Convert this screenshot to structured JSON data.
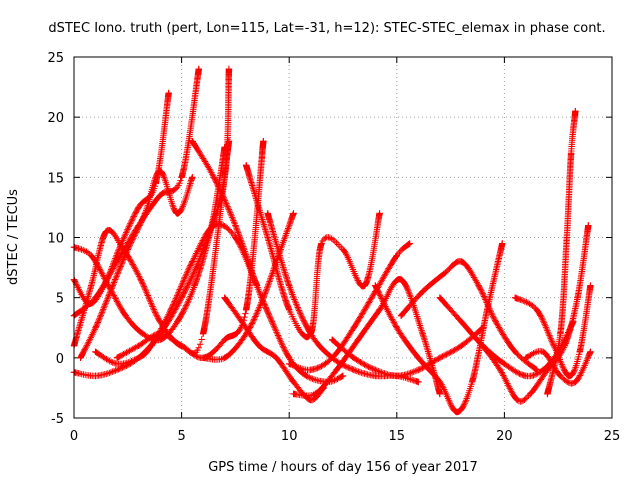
{
  "chart_data": {
    "type": "scatter",
    "title": "dSTEC Iono. truth (pert, Lon=115, Lat=-31, h=12): STEC-STEC_elemax in phase cont.",
    "xlabel": "GPS time / hours of day 156 of year 2017",
    "ylabel": "dSTEC  / TECUs",
    "xlim": [
      0,
      25
    ],
    "ylim": [
      -5,
      25
    ],
    "xticks": [
      "0",
      "5",
      "10",
      "15",
      "20",
      "25"
    ],
    "yticks": [
      "-5",
      "0",
      "5",
      "10",
      "15",
      "20",
      "25"
    ],
    "grid": true,
    "marker": "+",
    "color": "#ff0000",
    "series": [
      {
        "x": [
          0.0,
          0.8,
          1.6,
          2.4,
          3.2,
          4.0,
          4.8,
          5.6,
          6.4,
          7.0
        ],
        "y": [
          9.2,
          8.5,
          6.0,
          3.5,
          2.0,
          1.5,
          3.0,
          6.0,
          11.0,
          17.5
        ]
      },
      {
        "x": [
          0.0,
          0.7,
          1.4,
          2.2,
          3.0,
          3.8,
          4.4
        ],
        "y": [
          6.5,
          4.5,
          6.0,
          9.5,
          12.5,
          14.5,
          22.0
        ]
      },
      {
        "x": [
          0.0,
          1.0,
          2.0,
          3.0,
          4.0,
          5.0,
          5.8
        ],
        "y": [
          3.5,
          5.0,
          8.0,
          11.0,
          13.5,
          15.0,
          24.0
        ]
      },
      {
        "x": [
          0.0,
          1.0,
          2.0,
          3.0,
          4.0,
          5.0,
          6.0,
          7.0,
          7.2
        ],
        "y": [
          -1.2,
          -1.5,
          -1.0,
          0.0,
          2.0,
          5.0,
          9.0,
          15.0,
          24.0
        ]
      },
      {
        "x": [
          0.3,
          1.0,
          1.8,
          2.5,
          3.3,
          4.0,
          4.8,
          5.5
        ],
        "y": [
          0.0,
          2.5,
          6.0,
          9.0,
          12.0,
          15.5,
          12.0,
          15.0
        ]
      },
      {
        "x": [
          0.0,
          0.8,
          1.5,
          2.3,
          3.1,
          4.0,
          5.0,
          6.0,
          7.2
        ],
        "y": [
          1.0,
          6.0,
          10.5,
          9.0,
          6.5,
          3.0,
          1.0,
          2.0,
          18.0
        ]
      },
      {
        "x": [
          1.0,
          2.0,
          3.0,
          3.6,
          4.5,
          5.5,
          6.5,
          7.5,
          8.5
        ],
        "y": [
          0.5,
          -0.5,
          0.0,
          1.0,
          4.0,
          8.0,
          11.0,
          10.0,
          6.0
        ]
      },
      {
        "x": [
          2.0,
          3.0,
          4.0,
          5.0,
          6.0,
          7.0,
          8.0,
          8.8
        ],
        "y": [
          0.0,
          1.0,
          2.0,
          1.0,
          0.0,
          1.5,
          4.0,
          18.0
        ]
      },
      {
        "x": [
          5.5,
          6.5,
          7.5,
          8.5,
          9.2,
          10.0,
          10.8,
          11.8,
          12.5
        ],
        "y": [
          18.0,
          15.0,
          11.0,
          6.0,
          3.0,
          0.0,
          -1.5,
          -2.0,
          -1.5
        ]
      },
      {
        "x": [
          6.0,
          7.0,
          8.0,
          8.8,
          9.6,
          10.2
        ],
        "y": [
          0.0,
          0.0,
          2.0,
          5.0,
          9.0,
          12.0
        ]
      },
      {
        "x": [
          7.0,
          7.8,
          8.6,
          9.4,
          10.2,
          11.0,
          11.6
        ],
        "y": [
          5.0,
          3.0,
          1.0,
          0.0,
          -2.0,
          -3.5,
          -2.5
        ]
      },
      {
        "x": [
          8.0,
          9.0,
          10.0,
          11.0,
          11.5,
          12.5,
          13.5,
          14.2
        ],
        "y": [
          16.0,
          10.0,
          4.0,
          2.0,
          9.5,
          9.0,
          6.0,
          12.0
        ]
      },
      {
        "x": [
          9.0,
          10.0,
          11.0,
          12.0,
          13.0,
          14.0,
          15.0,
          16.0
        ],
        "y": [
          12.0,
          6.0,
          2.0,
          0.0,
          -1.0,
          -1.5,
          -1.5,
          -2.0
        ]
      },
      {
        "x": [
          10.0,
          11.0,
          12.0,
          13.0,
          14.0,
          15.0,
          15.6
        ],
        "y": [
          -0.5,
          -1.0,
          0.0,
          2.5,
          5.5,
          8.5,
          9.5
        ]
      },
      {
        "x": [
          10.2,
          11.2,
          12.2,
          13.2,
          14.2,
          15.2,
          16.2,
          17.0
        ],
        "y": [
          -3.0,
          -3.0,
          -1.0,
          1.5,
          4.0,
          6.5,
          2.0,
          -3.0
        ]
      },
      {
        "x": [
          12.0,
          13.0,
          14.0,
          15.0,
          16.0,
          17.0,
          18.0,
          19.0
        ],
        "y": [
          1.5,
          0.0,
          -1.0,
          -1.5,
          -1.0,
          0.0,
          1.0,
          2.5
        ]
      },
      {
        "x": [
          14.0,
          15.0,
          16.0,
          17.0,
          17.8,
          18.5,
          19.2,
          19.9
        ],
        "y": [
          6.0,
          2.5,
          0.0,
          -2.0,
          -4.5,
          -2.0,
          4.0,
          9.5
        ]
      },
      {
        "x": [
          15.2,
          16.2,
          17.2,
          18.0,
          18.8,
          19.6,
          20.5,
          21.5
        ],
        "y": [
          3.5,
          5.5,
          7.0,
          8.0,
          6.0,
          3.0,
          0.5,
          -1.0
        ]
      },
      {
        "x": [
          17.0,
          18.0,
          19.0,
          20.0,
          21.0,
          21.8,
          22.5,
          23.2
        ],
        "y": [
          5.0,
          3.0,
          1.0,
          -0.5,
          -1.5,
          -1.0,
          0.5,
          3.0
        ]
      },
      {
        "x": [
          19.0,
          19.8,
          20.6,
          21.2,
          22.0,
          22.8,
          23.4,
          23.9
        ],
        "y": [
          1.0,
          -1.0,
          -3.5,
          -3.0,
          -1.0,
          1.0,
          5.0,
          11.0
        ]
      },
      {
        "x": [
          20.5,
          21.5,
          22.3,
          23.0,
          23.5,
          24.0
        ],
        "y": [
          5.0,
          4.0,
          1.0,
          -1.5,
          0.5,
          6.0
        ]
      },
      {
        "x": [
          22.0,
          22.6,
          22.9,
          23.1,
          23.3
        ],
        "y": [
          -3.0,
          2.0,
          10.0,
          17.0,
          20.5
        ]
      },
      {
        "x": [
          21.0,
          21.8,
          22.6,
          23.3,
          24.0
        ],
        "y": [
          0.0,
          0.5,
          -1.5,
          -2.0,
          0.5
        ]
      }
    ]
  }
}
